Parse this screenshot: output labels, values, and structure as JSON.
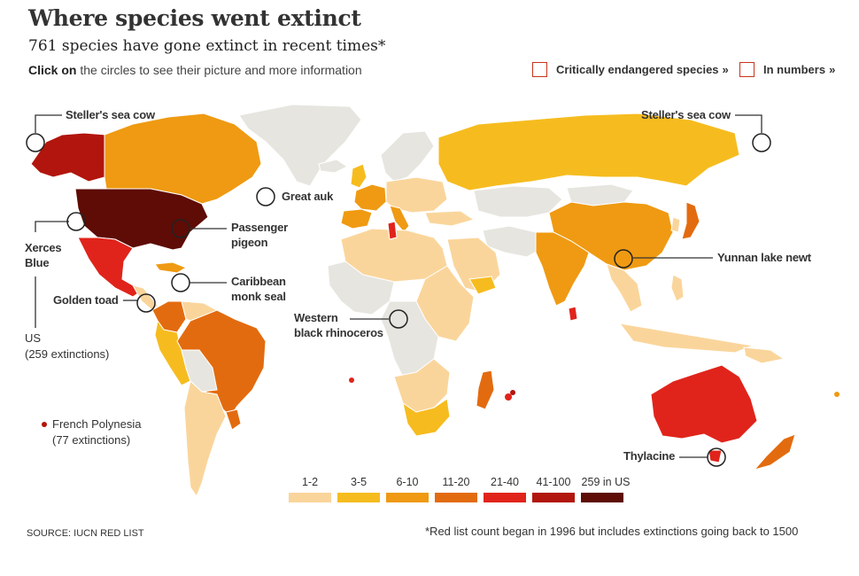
{
  "header": {
    "title": "Where species went extinct",
    "subtitle": "761 species have gone extinct in recent times*",
    "instruction_bold": "Click on",
    "instruction_rest": "the circles to see their picture and more information"
  },
  "toggles": [
    {
      "label": "Critically endangered species",
      "chevron": "»"
    },
    {
      "label": "In numbers",
      "chevron": "»"
    }
  ],
  "species_labels": {
    "steller_west": "Steller's sea cow",
    "steller_east": "Steller's sea cow",
    "great_auk": "Great auk",
    "xerces_1": "Xerces",
    "xerces_2": "Blue",
    "passenger_1": "Passenger",
    "passenger_2": "pigeon",
    "caribbean_1": "Caribbean",
    "caribbean_2": "monk seal",
    "golden_toad": "Golden toad",
    "western_1": "Western",
    "western_2": "black rhinoceros",
    "yunnan": "Yunnan lake newt",
    "thylacine": "Thylacine"
  },
  "notes": {
    "us_1": "US",
    "us_2": "(259 extinctions)",
    "fp_1": "French Polynesia",
    "fp_2": "(77 extinctions)"
  },
  "legend": [
    {
      "label": "1-2",
      "color": "#fad59b"
    },
    {
      "label": "3-5",
      "color": "#f6bc1f"
    },
    {
      "label": "6-10",
      "color": "#ef9a12"
    },
    {
      "label": "11-20",
      "color": "#e36b0f"
    },
    {
      "label": "21-40",
      "color": "#e0241b"
    },
    {
      "label": "41-100",
      "color": "#b2150d"
    },
    {
      "label": "259 in US",
      "color": "#5e0c05"
    }
  ],
  "colors": {
    "no_data": "#e6e5df",
    "accent": "#c8341c"
  },
  "source": "SOURCE: IUCN RED LIST",
  "footnote": "*Red list count began in 1996 but includes extinctions going back to 1500"
}
